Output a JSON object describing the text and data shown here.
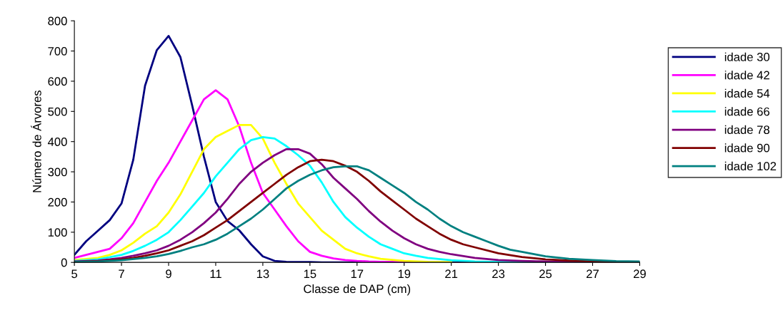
{
  "chart_data": {
    "type": "line",
    "xlabel": "Classe de DAP (cm)",
    "ylabel": "Número de Árvores",
    "xlim": [
      5,
      29
    ],
    "xticks": [
      5,
      7,
      9,
      11,
      13,
      15,
      17,
      19,
      21,
      23,
      25,
      27,
      29
    ],
    "ylim": [
      0,
      800
    ],
    "yticks": [
      0,
      100,
      200,
      300,
      400,
      500,
      600,
      700,
      800
    ],
    "grid": false,
    "legend": "right",
    "marker": "none",
    "line_style": "solid",
    "series": [
      {
        "name": "idade 30",
        "color": "#000080",
        "x": [
          5,
          5.5,
          6,
          6.5,
          7,
          7.5,
          8,
          8.5,
          9,
          9.5,
          10,
          10.5,
          11,
          11.5,
          12,
          12.5,
          13,
          13.5,
          14,
          15,
          15.5,
          17,
          19,
          21,
          23,
          25
        ],
        "values": [
          25,
          70,
          105,
          140,
          195,
          340,
          585,
          703,
          750,
          680,
          520,
          350,
          200,
          137,
          106,
          60,
          20,
          5,
          2,
          1,
          0,
          0,
          0,
          0,
          0,
          0
        ]
      },
      {
        "name": "idade 42",
        "color": "#ff00ff",
        "x": [
          5,
          5.5,
          6,
          6.5,
          7,
          7.5,
          8,
          8.5,
          9,
          9.5,
          10,
          10.5,
          11,
          11.5,
          12,
          12.5,
          13,
          13.5,
          14,
          14.5,
          15,
          15.5,
          16,
          16.5,
          17,
          17.5,
          18,
          19,
          20
        ],
        "values": [
          15,
          25,
          35,
          45,
          80,
          130,
          200,
          270,
          330,
          400,
          470,
          540,
          570,
          540,
          450,
          330,
          230,
          175,
          120,
          70,
          35,
          22,
          13,
          8,
          5,
          3,
          2,
          1,
          0
        ]
      },
      {
        "name": "idade 54",
        "color": "#ffff00",
        "x": [
          5,
          6,
          6.5,
          7,
          7.5,
          8,
          8.5,
          9,
          9.5,
          10,
          10.5,
          11,
          11.5,
          12,
          12.5,
          13,
          13.5,
          14,
          14.5,
          15,
          15.5,
          16,
          16.5,
          17,
          17.5,
          18,
          19,
          20,
          21
        ],
        "values": [
          8,
          15,
          25,
          40,
          65,
          95,
          120,
          165,
          225,
          300,
          375,
          415,
          435,
          455,
          455,
          410,
          330,
          260,
          195,
          150,
          105,
          75,
          45,
          30,
          20,
          12,
          5,
          2,
          1
        ]
      },
      {
        "name": "idade 66",
        "color": "#00ffff",
        "x": [
          5,
          6,
          6.5,
          7,
          7.5,
          8,
          8.5,
          9,
          9.5,
          10,
          10.5,
          11,
          11.5,
          12,
          12.5,
          13,
          13.5,
          14,
          14.5,
          15,
          15.5,
          16,
          16.5,
          17,
          17.5,
          18,
          18.5,
          19,
          19.5,
          20,
          21,
          22,
          23,
          26,
          29
        ],
        "values": [
          5,
          10,
          17,
          25,
          38,
          55,
          75,
          100,
          140,
          185,
          230,
          285,
          330,
          375,
          405,
          415,
          410,
          385,
          355,
          320,
          265,
          200,
          150,
          115,
          85,
          60,
          45,
          30,
          22,
          15,
          7,
          3,
          1,
          0,
          0
        ]
      },
      {
        "name": "idade 78",
        "color": "#800080",
        "x": [
          5,
          6,
          6.5,
          7,
          7.5,
          8,
          8.5,
          9,
          9.5,
          10,
          10.5,
          11,
          11.5,
          12,
          12.5,
          13,
          13.5,
          14,
          14.5,
          15,
          15.5,
          16,
          16.5,
          17,
          17.5,
          18,
          18.5,
          19,
          19.5,
          20,
          20.5,
          21,
          22,
          23,
          24,
          25,
          26,
          27
        ],
        "values": [
          3,
          6,
          10,
          15,
          22,
          30,
          40,
          55,
          75,
          100,
          130,
          165,
          210,
          260,
          300,
          330,
          355,
          375,
          375,
          360,
          325,
          280,
          245,
          210,
          170,
          135,
          105,
          80,
          60,
          45,
          35,
          27,
          15,
          8,
          5,
          3,
          2,
          1
        ]
      },
      {
        "name": "idade 90",
        "color": "#800000",
        "x": [
          5,
          6,
          7,
          7.5,
          8,
          8.5,
          9,
          9.5,
          10,
          10.5,
          11,
          11.5,
          12,
          12.5,
          13,
          13.5,
          14,
          14.5,
          15,
          15.5,
          16,
          16.5,
          17,
          17.5,
          18,
          18.5,
          19,
          19.5,
          20,
          20.5,
          21,
          21.5,
          22,
          23,
          24,
          25,
          26,
          27,
          28,
          29
        ],
        "values": [
          2,
          4,
          10,
          15,
          22,
          30,
          40,
          55,
          70,
          90,
          115,
          140,
          170,
          200,
          230,
          260,
          290,
          315,
          335,
          340,
          335,
          320,
          300,
          270,
          235,
          205,
          175,
          145,
          120,
          95,
          75,
          60,
          50,
          30,
          18,
          10,
          6,
          3,
          1,
          0
        ]
      },
      {
        "name": "idade 102",
        "color": "#008080",
        "x": [
          5,
          6,
          7,
          8,
          8.5,
          9,
          9.5,
          10,
          10.5,
          11,
          11.5,
          12,
          12.5,
          13,
          13.5,
          14,
          14.5,
          15,
          15.5,
          16,
          16.5,
          17,
          17.5,
          18,
          18.5,
          19,
          19.5,
          20,
          20.5,
          21,
          21.5,
          22,
          22.5,
          23,
          23.5,
          24,
          25,
          26,
          27,
          28,
          29
        ],
        "values": [
          1,
          3,
          7,
          15,
          20,
          28,
          38,
          50,
          60,
          75,
          95,
          120,
          145,
          175,
          210,
          245,
          270,
          290,
          305,
          315,
          318,
          318,
          305,
          280,
          255,
          230,
          200,
          175,
          145,
          120,
          100,
          85,
          70,
          55,
          42,
          35,
          20,
          12,
          8,
          4,
          3
        ]
      }
    ]
  }
}
